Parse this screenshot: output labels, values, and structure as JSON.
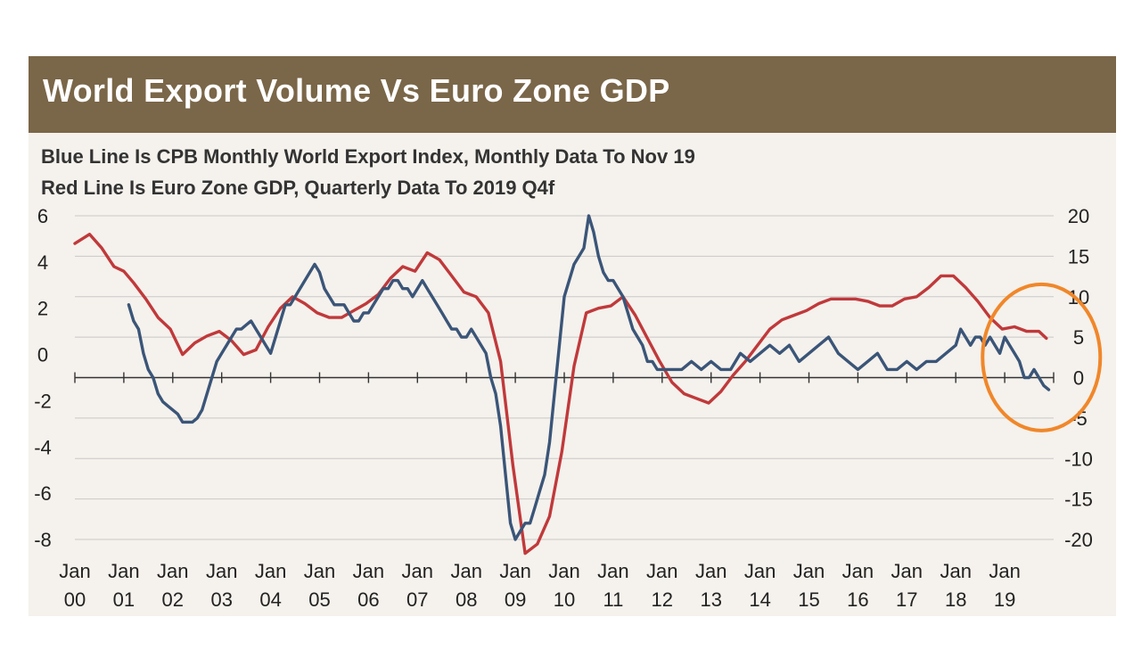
{
  "title": "World Export Volume Vs Euro Zone GDP",
  "subtitle_lines": [
    "Blue Line Is CPB Monthly World Export Index, Monthly Data To Nov 19",
    "Red Line Is Euro Zone GDP, Quarterly Data To 2019 Q4f"
  ],
  "colors": {
    "title_bar": "#7a6648",
    "panel": "#f5f1ec",
    "blue_series": "#3a5578",
    "red_series": "#c0393b",
    "highlight_circle": "#f0872a",
    "grid": "#c9c9c9"
  },
  "chart_data": {
    "type": "line",
    "title": "World Export Volume Vs Euro Zone GDP",
    "x_tick_labels": [
      {
        "line1": "Jan",
        "line2": "00",
        "year": 2000
      },
      {
        "line1": "Jan",
        "line2": "01",
        "year": 2001
      },
      {
        "line1": "Jan",
        "line2": "02",
        "year": 2002
      },
      {
        "line1": "Jan",
        "line2": "03",
        "year": 2003
      },
      {
        "line1": "Jan",
        "line2": "04",
        "year": 2004
      },
      {
        "line1": "Jan",
        "line2": "05",
        "year": 2005
      },
      {
        "line1": "Jan",
        "line2": "06",
        "year": 2006
      },
      {
        "line1": "Jan",
        "line2": "07",
        "year": 2007
      },
      {
        "line1": "Jan",
        "line2": "08",
        "year": 2008
      },
      {
        "line1": "Jan",
        "line2": "09",
        "year": 2009
      },
      {
        "line1": "Jan",
        "line2": "10",
        "year": 2010
      },
      {
        "line1": "Jan",
        "line2": "11",
        "year": 2011
      },
      {
        "line1": "Jan",
        "line2": "12",
        "year": 2012
      },
      {
        "line1": "Jan",
        "line2": "13",
        "year": 2013
      },
      {
        "line1": "Jan",
        "line2": "14",
        "year": 2014
      },
      {
        "line1": "Jan",
        "line2": "15",
        "year": 2015
      },
      {
        "line1": "Jan",
        "line2": "16",
        "year": 2016
      },
      {
        "line1": "Jan",
        "line2": "17",
        "year": 2017
      },
      {
        "line1": "Jan",
        "line2": "18",
        "year": 2018
      },
      {
        "line1": "Jan",
        "line2": "19",
        "year": 2019
      }
    ],
    "xlim": [
      2000.0,
      2020.0
    ],
    "left_axis": {
      "ylim": [
        -8,
        6
      ],
      "ticks": [
        "6",
        "4",
        "2",
        "0",
        "-2",
        "-4",
        "-6",
        "-8"
      ],
      "tick_values": [
        6,
        4,
        2,
        0,
        -2,
        -4,
        -6,
        -8
      ]
    },
    "right_axis": {
      "ylim": [
        -20,
        20
      ],
      "ticks": [
        "20",
        "15",
        "10",
        "5",
        "0",
        "-5",
        "-10",
        "-15",
        "-20"
      ],
      "tick_values": [
        20,
        15,
        10,
        5,
        0,
        -5,
        -10,
        -15,
        -20
      ]
    },
    "grid": true,
    "series": [
      {
        "key": "gdp",
        "color": "#c0393b",
        "axis": "left",
        "x": [
          2000.0,
          2000.3,
          2000.55,
          2000.8,
          2001.0,
          2001.2,
          2001.45,
          2001.7,
          2001.95,
          2002.2,
          2002.45,
          2002.7,
          2002.95,
          2003.2,
          2003.45,
          2003.7,
          2003.95,
          2004.2,
          2004.45,
          2004.7,
          2004.95,
          2005.2,
          2005.45,
          2005.7,
          2005.95,
          2006.2,
          2006.45,
          2006.7,
          2006.95,
          2007.2,
          2007.45,
          2007.7,
          2007.95,
          2008.2,
          2008.45,
          2008.7,
          2008.95,
          2009.2,
          2009.45,
          2009.7,
          2009.95,
          2010.2,
          2010.45,
          2010.7,
          2010.95,
          2011.2,
          2011.45,
          2011.7,
          2011.95,
          2012.2,
          2012.45,
          2012.7,
          2012.95,
          2013.2,
          2013.45,
          2013.7,
          2013.95,
          2014.2,
          2014.45,
          2014.7,
          2014.95,
          2015.2,
          2015.45,
          2015.7,
          2015.95,
          2016.2,
          2016.45,
          2016.7,
          2016.95,
          2017.2,
          2017.45,
          2017.7,
          2017.95,
          2018.2,
          2018.45,
          2018.7,
          2018.95,
          2019.2,
          2019.45,
          2019.7,
          2019.85
        ],
        "y": [
          4.8,
          5.2,
          4.6,
          3.8,
          3.6,
          3.1,
          2.4,
          1.6,
          1.1,
          0.0,
          0.5,
          0.8,
          1.0,
          0.6,
          0.0,
          0.2,
          1.2,
          2.0,
          2.5,
          2.2,
          1.8,
          1.6,
          1.6,
          1.9,
          2.2,
          2.6,
          3.3,
          3.8,
          3.6,
          4.4,
          4.1,
          3.4,
          2.7,
          2.5,
          1.8,
          -0.3,
          -4.8,
          -8.6,
          -8.2,
          -7.0,
          -4.2,
          -0.5,
          1.8,
          2.0,
          2.1,
          2.5,
          1.7,
          0.7,
          -0.3,
          -1.2,
          -1.7,
          -1.9,
          -2.1,
          -1.6,
          -0.9,
          -0.3,
          0.4,
          1.1,
          1.5,
          1.7,
          1.9,
          2.2,
          2.4,
          2.4,
          2.4,
          2.3,
          2.1,
          2.1,
          2.4,
          2.5,
          2.9,
          3.4,
          3.4,
          2.9,
          2.3,
          1.6,
          1.1,
          1.2,
          1.0,
          1.0,
          0.7
        ]
      },
      {
        "key": "exports",
        "color": "#3a5578",
        "axis": "right",
        "x": [
          2001.1,
          2001.2,
          2001.3,
          2001.4,
          2001.5,
          2001.6,
          2001.7,
          2001.8,
          2001.9,
          2002.0,
          2002.1,
          2002.2,
          2002.3,
          2002.4,
          2002.5,
          2002.6,
          2002.7,
          2002.8,
          2002.9,
          2003.0,
          2003.1,
          2003.2,
          2003.3,
          2003.4,
          2003.5,
          2003.6,
          2003.7,
          2003.8,
          2003.9,
          2004.0,
          2004.1,
          2004.2,
          2004.3,
          2004.4,
          2004.5,
          2004.6,
          2004.7,
          2004.8,
          2004.9,
          2005.0,
          2005.1,
          2005.2,
          2005.3,
          2005.4,
          2005.5,
          2005.6,
          2005.7,
          2005.8,
          2005.9,
          2006.0,
          2006.1,
          2006.2,
          2006.3,
          2006.4,
          2006.5,
          2006.6,
          2006.7,
          2006.8,
          2006.9,
          2007.0,
          2007.1,
          2007.2,
          2007.3,
          2007.4,
          2007.5,
          2007.6,
          2007.7,
          2007.8,
          2007.9,
          2008.0,
          2008.1,
          2008.2,
          2008.3,
          2008.4,
          2008.5,
          2008.6,
          2008.7,
          2008.8,
          2008.9,
          2009.0,
          2009.1,
          2009.2,
          2009.3,
          2009.4,
          2009.5,
          2009.6,
          2009.7,
          2009.8,
          2009.9,
          2010.0,
          2010.1,
          2010.2,
          2010.3,
          2010.4,
          2010.5,
          2010.6,
          2010.7,
          2010.8,
          2010.9,
          2011.0,
          2011.1,
          2011.2,
          2011.3,
          2011.4,
          2011.5,
          2011.6,
          2011.7,
          2011.8,
          2011.9,
          2012.0,
          2012.2,
          2012.4,
          2012.6,
          2012.8,
          2013.0,
          2013.2,
          2013.4,
          2013.6,
          2013.8,
          2014.0,
          2014.2,
          2014.4,
          2014.6,
          2014.8,
          2015.0,
          2015.2,
          2015.4,
          2015.6,
          2015.8,
          2016.0,
          2016.2,
          2016.4,
          2016.6,
          2016.8,
          2017.0,
          2017.2,
          2017.4,
          2017.6,
          2017.8,
          2018.0,
          2018.1,
          2018.2,
          2018.3,
          2018.4,
          2018.5,
          2018.6,
          2018.7,
          2018.8,
          2018.9,
          2019.0,
          2019.1,
          2019.2,
          2019.3,
          2019.4,
          2019.5,
          2019.6,
          2019.7,
          2019.8,
          2019.9
        ],
        "y": [
          9,
          7,
          6,
          3,
          1,
          0,
          -2,
          -3,
          -3.5,
          -4,
          -4.5,
          -5.5,
          -5.5,
          -5.5,
          -5,
          -4,
          -2,
          0,
          2,
          3,
          4,
          5,
          6,
          6,
          6.5,
          7,
          6,
          5,
          4,
          3,
          5,
          7,
          9,
          9,
          10,
          11,
          12,
          13,
          14,
          13,
          11,
          10,
          9,
          9,
          9,
          8,
          7,
          7,
          8,
          8,
          9,
          10,
          11,
          11,
          12,
          12,
          11,
          11,
          10,
          11,
          12,
          11,
          10,
          9,
          8,
          7,
          6,
          6,
          5,
          5,
          6,
          5,
          4,
          3,
          0,
          -2,
          -6,
          -12,
          -18,
          -20,
          -19,
          -18,
          -18,
          -16,
          -14,
          -12,
          -8,
          -2,
          4,
          10,
          12,
          14,
          15,
          16,
          20,
          18,
          15,
          13,
          12,
          12,
          11,
          10,
          8,
          6,
          5,
          4,
          2,
          2,
          1,
          1,
          1,
          1,
          2,
          1,
          2,
          1,
          1,
          3,
          2,
          3,
          4,
          3,
          4,
          2,
          3,
          4,
          5,
          3,
          2,
          1,
          2,
          3,
          1,
          1,
          2,
          1,
          2,
          2,
          3,
          4,
          6,
          5,
          4,
          5,
          5,
          4,
          5,
          4,
          3,
          5,
          4,
          3,
          2,
          0,
          0,
          1,
          0,
          -1,
          -1.5
        ]
      }
    ]
  }
}
